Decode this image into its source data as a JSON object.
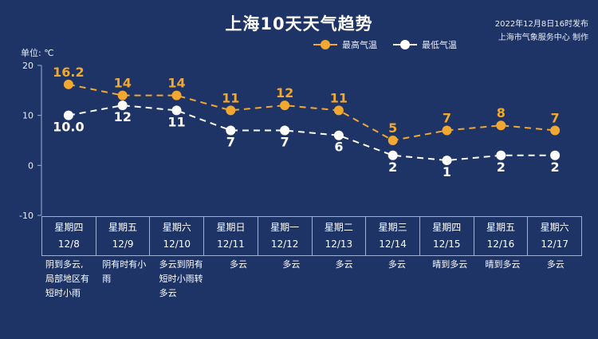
{
  "title": "上海10天天气趋势",
  "publish": {
    "time": "2022年12月8日16时发布",
    "source": "上海市气象服务中心 制作"
  },
  "unit_label": "单位: ℃",
  "legend": {
    "high_label": "最高气温",
    "low_label": "最低气温"
  },
  "colors": {
    "background": "#1f3466",
    "high": "#f0a830",
    "low": "#ffffff",
    "grid": "#9fb0d6"
  },
  "chart_data": {
    "type": "line",
    "x": [
      "12/8",
      "12/9",
      "12/10",
      "12/11",
      "12/12",
      "12/13",
      "12/14",
      "12/15",
      "12/16",
      "12/17"
    ],
    "series": [
      {
        "name": "最高气温",
        "values": [
          16.2,
          14,
          14,
          11,
          12,
          11,
          5,
          7,
          8,
          7
        ],
        "labels": [
          "16.2",
          "14",
          "14",
          "11",
          "12",
          "11",
          "5",
          "7",
          "8",
          "7"
        ]
      },
      {
        "name": "最低气温",
        "values": [
          10.0,
          12,
          11,
          7,
          7,
          6,
          2,
          1,
          2,
          2
        ],
        "labels": [
          "10.0",
          "12",
          "11",
          "7",
          "7",
          "6",
          "2",
          "1",
          "2",
          "2"
        ]
      }
    ],
    "ylim": [
      -10,
      20
    ],
    "yticks": [
      "20",
      "10",
      "0",
      "-10"
    ],
    "line_style": "dashed",
    "grid": false,
    "legend_position": "top"
  },
  "days": [
    {
      "weekday": "星期四",
      "date": "12/8",
      "condition": [
        "阴到多云,",
        "局部地区有",
        "短时小雨"
      ]
    },
    {
      "weekday": "星期五",
      "date": "12/9",
      "condition": [
        "阴有时有小",
        "雨"
      ]
    },
    {
      "weekday": "星期六",
      "date": "12/10",
      "condition": [
        "多云到阴有",
        "短时小雨转",
        "多云"
      ]
    },
    {
      "weekday": "星期日",
      "date": "12/11",
      "condition": [
        "多云"
      ]
    },
    {
      "weekday": "星期一",
      "date": "12/12",
      "condition": [
        "多云"
      ]
    },
    {
      "weekday": "星期二",
      "date": "12/13",
      "condition": [
        "多云"
      ]
    },
    {
      "weekday": "星期三",
      "date": "12/14",
      "condition": [
        "多云"
      ]
    },
    {
      "weekday": "星期四",
      "date": "12/15",
      "condition": [
        "晴到多云"
      ]
    },
    {
      "weekday": "星期五",
      "date": "12/16",
      "condition": [
        "晴到多云"
      ]
    },
    {
      "weekday": "星期六",
      "date": "12/17",
      "condition": [
        "多云"
      ]
    }
  ]
}
